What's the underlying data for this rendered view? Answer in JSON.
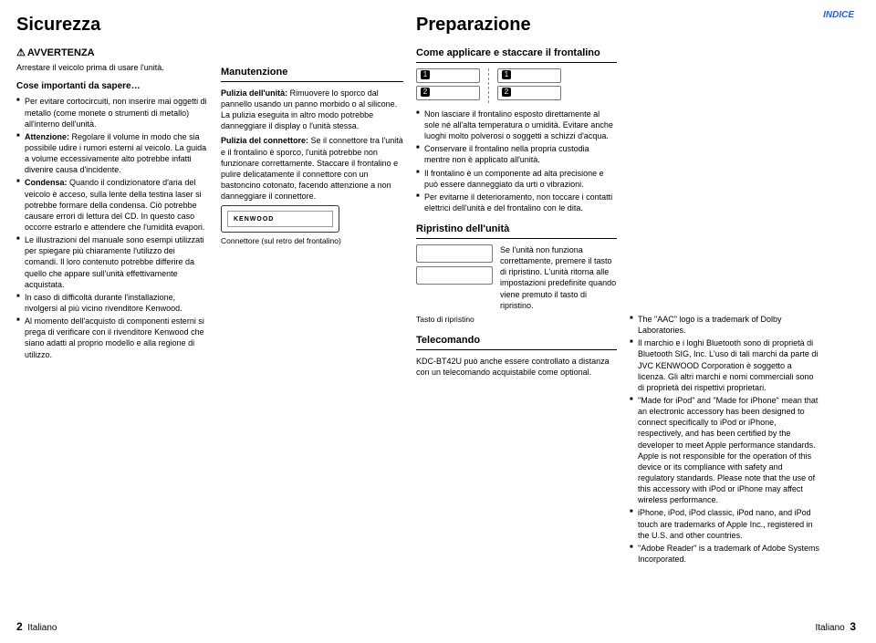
{
  "indice": "INDICE",
  "footer_left_num": "2",
  "footer_left_text": "Italiano",
  "footer_right_text": "Italiano",
  "footer_right_num": "3",
  "col1": {
    "title": "Sicurezza",
    "warn_label": "AVVERTENZA",
    "warn_text": "Arrestare il veicolo prima di usare l'unità.",
    "sub": "Cose importanti da sapere…",
    "items": [
      "Per evitare cortocircuiti, non inserire mai oggetti di metallo (come monete o strumenti di metallo) all'interno dell'unità.",
      "<b>Attenzione:</b> Regolare il volume in modo che sia possibile udire i rumori esterni al veicolo. La guida a volume eccessivamente alto potrebbe infatti divenire causa d'incidente.",
      "<b>Condensa:</b> Quando il condizionatore d'aria del veicolo è acceso, sulla lente della testina laser si potrebbe formare della condensa. Ciò potrebbe causare errori di lettura del CD. In questo caso occorre estrarlo e attendere che l'umidità evapori.",
      "Le illustrazioni del manuale sono esempi utilizzati per spiegare più chiaramente l'utilizzo dei comandi. Il loro contenuto potrebbe differire da quello che appare sull'unità effettivamente acquistata.",
      "In caso di difficoltà durante l'installazione, rivolgersi al più vicino rivenditore Kenwood.",
      "Al momento dell'acquisto di componenti esterni si prega di verificare con il rivenditore Kenwood che siano adatti al proprio modello e alla regione di utilizzo."
    ]
  },
  "col2": {
    "h2": "Manutenzione",
    "p1": "<b>Pulizia dell'unità:</b> Rimuovere lo sporco dal pannello usando un panno morbido o al silicone. La pulizia eseguita in altro modo potrebbe danneggiare il display o l'unità stessa.",
    "p2": "<b>Pulizia del connettore:</b> Se il connettore tra l'unità e il frontalino è sporco, l'unità potrebbe non funzionare correttamente. Staccare il frontalino e pulire delicatamente il connettore con un bastoncino cotonato, facendo attenzione a non danneggiare il connettore.",
    "brand": "KENWOOD",
    "caption": "Connettore (sul retro del frontalino)"
  },
  "col3": {
    "title": "Preparazione",
    "h2a": "Come applicare e staccare il frontalino",
    "items": [
      "Non lasciare il frontalino esposto direttamente al sole né all'alta temperatura o umidità. Evitare anche luoghi molto polverosi o soggetti a schizzi d'acqua.",
      "Conservare il frontalino nella propria custodia mentre non è applicato all'unità.",
      "Il frontalino è un componente ad alta precisione e può essere danneggiato da urti o vibrazioni.",
      "Per evitarne il deterioramento, non toccare i contatti elettrici dell'unità e del frontalino con le dita."
    ],
    "h2b": "Ripristino dell'unità",
    "reset_text": "Se l'unità non funziona correttamente, premere il tasto di ripristino. L'unità ritorna alle impostazioni predefinite quando viene premuto il tasto di ripristino.",
    "reset_label": "Tasto di ripristino",
    "h2c": "Telecomando",
    "tele_text": "KDC-BT42U può anche essere controllato a distanza con un telecomando acquistabile come optional."
  },
  "col4": {
    "items": [
      "The \"AAC\" logo is a trademark of Dolby Laboratories.",
      "Il marchio e i loghi Bluetooth sono di proprietà di Bluetooth SIG, Inc. L'uso di tali marchi da parte di JVC KENWOOD Corporation è soggetto a licenza. Gli altri marchi e nomi commerciali sono di proprietà dei rispettivi proprietari.",
      "\"Made for iPod\" and \"Made for iPhone\" mean that an electronic accessory has been designed to connect specifically to iPod or iPhone, respectively, and has been certified by the developer to meet Apple performance standards. Apple is not responsible for the operation of this device or its compliance with safety and regulatory standards. Please note that the use of this accessory with iPod or iPhone may affect wireless performance.",
      "iPhone, iPod, iPod classic, iPod nano, and iPod touch are trademarks of Apple Inc., registered in the U.S. and other countries.",
      "\"Adobe Reader\" is a trademark of Adobe Systems Incorporated."
    ]
  }
}
